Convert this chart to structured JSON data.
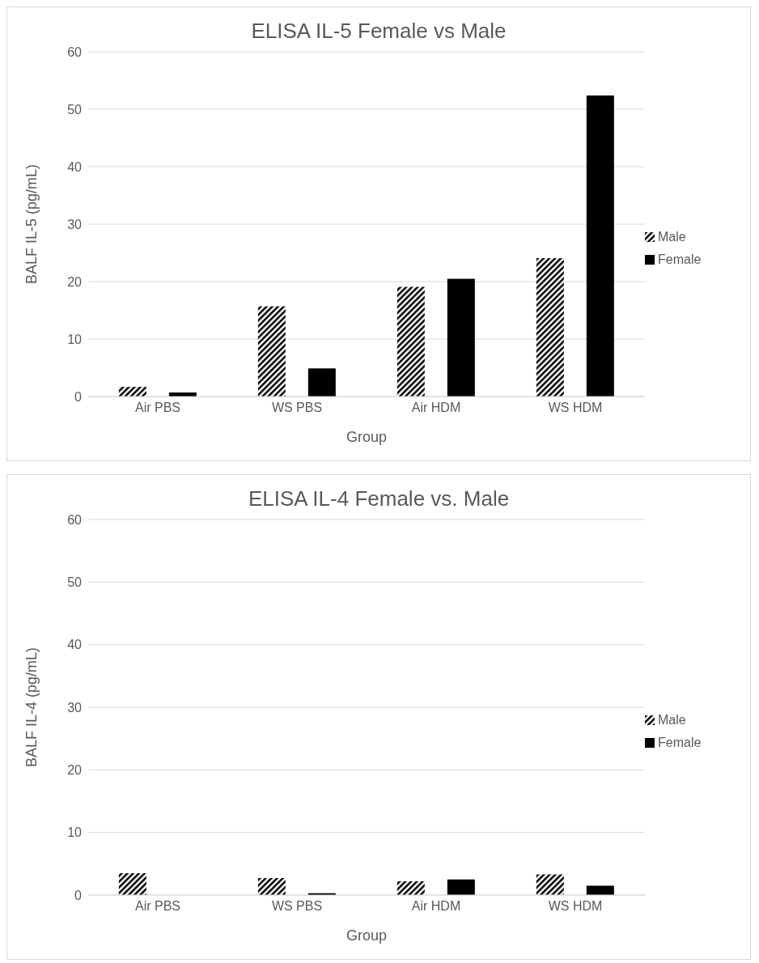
{
  "chart_data": [
    {
      "type": "bar",
      "title": "ELISA IL-5 Female vs Male",
      "xlabel": "Group",
      "ylabel": "BALF IL-5 (pg/mL)",
      "categories": [
        "Air PBS",
        "WS PBS",
        "Air HDM",
        "WS HDM"
      ],
      "series": [
        {
          "name": "Male",
          "color": "#000000",
          "values": [
            1.7,
            15.7,
            19.1,
            24.1
          ]
        },
        {
          "name": "Female",
          "color": "#000000",
          "values": [
            0.7,
            4.9,
            20.5,
            52.4
          ]
        }
      ],
      "ylim": [
        0,
        60
      ],
      "yticks": [
        0,
        10,
        20,
        30,
        40,
        50,
        60
      ],
      "grid": "y",
      "legend": "right"
    },
    {
      "type": "bar",
      "title": "ELISA IL-4 Female vs. Male",
      "xlabel": "Group",
      "ylabel": "BALF IL-4 (pg/mL)",
      "categories": [
        "Air PBS",
        "WS PBS",
        "Air HDM",
        "WS HDM"
      ],
      "series": [
        {
          "name": "Male",
          "color": "#000000",
          "values": [
            3.5,
            2.7,
            2.2,
            3.3
          ]
        },
        {
          "name": "Female",
          "color": "#000000",
          "values": [
            0,
            0.3,
            2.5,
            1.5
          ]
        }
      ],
      "ylim": [
        0,
        60
      ],
      "yticks": [
        0,
        10,
        20,
        30,
        40,
        50,
        60
      ],
      "grid": "y",
      "legend": "right"
    }
  ]
}
